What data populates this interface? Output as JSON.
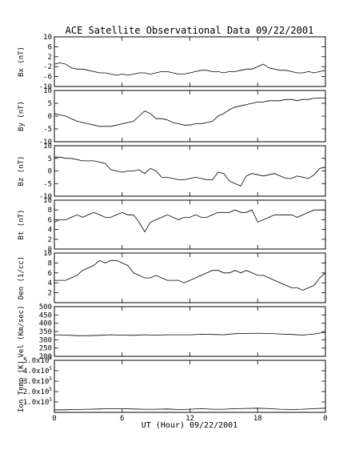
{
  "chart_data": {
    "type": "line",
    "title": "ACE Satellite Observational Data   09/22/2001",
    "xlabel": "UT (Hour)  09/22/2001",
    "x_ticks": [
      "0",
      "6",
      "12",
      "18",
      "0"
    ],
    "xlim": [
      0,
      24
    ],
    "grid": false,
    "panels": [
      {
        "id": "bx",
        "ylabel": "Bx (nT)",
        "ylim": [
          -10,
          10
        ],
        "yticks": [
          -10,
          -6,
          -2,
          2,
          6,
          10
        ],
        "ytick_labels": [
          "-10",
          "-6",
          "-2",
          "2",
          "6",
          "10"
        ],
        "x": [
          0,
          0.5,
          1,
          1.5,
          2,
          2.5,
          3,
          3.5,
          4,
          4.5,
          5,
          5.5,
          6,
          6.5,
          7,
          7.5,
          8,
          8.5,
          9,
          9.5,
          10,
          10.5,
          11,
          11.5,
          12,
          12.5,
          13,
          13.5,
          14,
          14.5,
          15,
          15.5,
          16,
          16.5,
          17,
          17.5,
          18,
          18.5,
          19,
          19.5,
          20,
          20.5,
          21,
          21.5,
          22,
          22.5,
          23,
          23.5,
          24
        ],
        "values": [
          -1,
          -0.5,
          -1,
          -2.5,
          -3,
          -3,
          -3.5,
          -4,
          -4.5,
          -4.5,
          -5,
          -5.5,
          -5,
          -5.5,
          -5,
          -4.5,
          -4.5,
          -5,
          -4.5,
          -4,
          -4,
          -4.5,
          -5,
          -5,
          -4.5,
          -4,
          -3.5,
          -3.5,
          -4,
          -4,
          -4.5,
          -4,
          -4,
          -3.5,
          -3,
          -3,
          -2,
          -1,
          -2.5,
          -3,
          -3.5,
          -3.5,
          -4,
          -4.5,
          -4.5,
          -4,
          -4.5,
          -4,
          -3.5
        ]
      },
      {
        "id": "by",
        "ylabel": "By (nT)",
        "ylim": [
          -10,
          10
        ],
        "yticks": [
          -10,
          -5,
          0,
          5,
          10
        ],
        "ytick_labels": [
          "-10",
          "-5",
          "0",
          "5",
          "10"
        ],
        "x": [
          0,
          0.5,
          1,
          1.5,
          2,
          2.5,
          3,
          3.5,
          4,
          4.5,
          5,
          5.5,
          6,
          6.5,
          7,
          7.5,
          8,
          8.5,
          9,
          9.5,
          10,
          10.5,
          11,
          11.5,
          12,
          12.5,
          13,
          13.5,
          14,
          14.5,
          15,
          15.5,
          16,
          16.5,
          17,
          17.5,
          18,
          18.5,
          19,
          19.5,
          20,
          20.5,
          21,
          21.5,
          22,
          22.5,
          23,
          23.5,
          24
        ],
        "values": [
          1,
          0.5,
          0,
          -1,
          -2,
          -2.5,
          -3,
          -3.5,
          -4,
          -4,
          -4,
          -3.5,
          -3,
          -2.5,
          -2,
          0,
          2,
          1,
          -1,
          -1,
          -1.5,
          -2.5,
          -3,
          -3.5,
          -3.5,
          -3,
          -3,
          -2.5,
          -2,
          0,
          1,
          2.5,
          3.5,
          4,
          4.5,
          5,
          5.5,
          5.5,
          6,
          6,
          6,
          6.5,
          6.5,
          6,
          6.5,
          6.5,
          7,
          7,
          7
        ]
      },
      {
        "id": "bz",
        "ylabel": "Bz (nT)",
        "ylim": [
          -10,
          10
        ],
        "yticks": [
          -10,
          -5,
          0,
          5,
          10
        ],
        "ytick_labels": [
          "-10",
          "-5",
          "0",
          "5",
          "10"
        ],
        "x": [
          0,
          0.5,
          1,
          1.5,
          2,
          2.5,
          3,
          3.5,
          4,
          4.5,
          5,
          5.5,
          6,
          6.5,
          7,
          7.5,
          8,
          8.5,
          9,
          9.5,
          10,
          10.5,
          11,
          11.5,
          12,
          12.5,
          13,
          13.5,
          14,
          14.5,
          15,
          15.5,
          16,
          16.5,
          17,
          17.5,
          18,
          18.5,
          19,
          19.5,
          20,
          20.5,
          21,
          21.5,
          22,
          22.5,
          23,
          23.5,
          24
        ],
        "values": [
          5.5,
          5.5,
          5,
          5,
          4.5,
          4,
          4,
          4,
          3.5,
          3,
          0.5,
          0,
          -0.5,
          0,
          0,
          0.5,
          -1,
          1,
          0,
          -2.5,
          -2.5,
          -3,
          -3.5,
          -3.5,
          -3,
          -2.5,
          -3,
          -3.5,
          -3.5,
          -0.5,
          -1,
          -4,
          -5,
          -6,
          -2,
          -1,
          -1.5,
          -2,
          -1.5,
          -1,
          -2,
          -3,
          -3,
          -2,
          -2.5,
          -3,
          -1.5,
          1,
          1.5
        ]
      },
      {
        "id": "bt",
        "ylabel": "Bt (nT)",
        "ylim": [
          0,
          10
        ],
        "yticks": [
          0,
          2,
          4,
          6,
          8,
          10
        ],
        "ytick_labels": [
          "0",
          "2",
          "4",
          "6",
          "8",
          "10"
        ],
        "x": [
          0,
          0.5,
          1,
          1.5,
          2,
          2.5,
          3,
          3.5,
          4,
          4.5,
          5,
          5.5,
          6,
          6.5,
          7,
          7.5,
          8,
          8.5,
          9,
          9.5,
          10,
          10.5,
          11,
          11.5,
          12,
          12.5,
          13,
          13.5,
          14,
          14.5,
          15,
          15.5,
          16,
          16.5,
          17,
          17.5,
          18,
          18.5,
          19,
          19.5,
          20,
          20.5,
          21,
          21.5,
          22,
          22.5,
          23,
          23.5,
          24
        ],
        "values": [
          5.5,
          6,
          6,
          6.5,
          7,
          6.5,
          7,
          7.5,
          7,
          6.5,
          6.5,
          7,
          7.5,
          7,
          7,
          5.5,
          3.5,
          5.5,
          6,
          6.5,
          7,
          6.5,
          6,
          6.5,
          6.5,
          7,
          6.5,
          6.5,
          7,
          7.5,
          7.5,
          7.5,
          8,
          7.5,
          7.5,
          8,
          5.5,
          6,
          6.5,
          7,
          7,
          7,
          7,
          6.5,
          7,
          7.5,
          8,
          8,
          8
        ]
      },
      {
        "id": "den",
        "ylabel": "Den (1/cc)",
        "ylim": [
          0,
          10
        ],
        "yticks": [
          2,
          4,
          6,
          8,
          10
        ],
        "ytick_labels": [
          "2",
          "4",
          "6",
          "8",
          "10"
        ],
        "x": [
          0,
          0.5,
          1,
          1.5,
          2,
          2.5,
          3,
          3.5,
          4,
          4.5,
          5,
          5.5,
          6,
          6.5,
          7,
          7.5,
          8,
          8.5,
          9,
          9.5,
          10,
          10.5,
          11,
          11.5,
          12,
          12.5,
          13,
          13.5,
          14,
          14.5,
          15,
          15.5,
          16,
          16.5,
          17,
          17.5,
          18,
          18.5,
          19,
          19.5,
          20,
          20.5,
          21,
          21.5,
          22,
          22.5,
          23,
          23.5,
          24
        ],
        "values": [
          4.5,
          4.5,
          4.5,
          5,
          5.5,
          6.5,
          7,
          7.5,
          8.5,
          8,
          8.5,
          8.5,
          8,
          7.5,
          6,
          5.5,
          5,
          5,
          5.5,
          5,
          4.5,
          4.5,
          4.5,
          4,
          4.5,
          5,
          5.5,
          6,
          6.5,
          6.5,
          6,
          6,
          6.5,
          6,
          6.5,
          6,
          5.5,
          5.5,
          5,
          4.5,
          4,
          3.5,
          3,
          3,
          2.5,
          3,
          3.5,
          5,
          6
        ]
      },
      {
        "id": "vel",
        "ylabel": "Vel (Km/sec)",
        "ylim": [
          200,
          500
        ],
        "yticks": [
          200,
          250,
          300,
          350,
          400,
          450,
          500
        ],
        "ytick_labels": [
          "200",
          "250",
          "300",
          "350",
          "400",
          "450",
          "500"
        ],
        "x": [
          0,
          1,
          2,
          3,
          4,
          5,
          6,
          7,
          8,
          9,
          10,
          11,
          12,
          13,
          14,
          15,
          16,
          17,
          18,
          19,
          20,
          21,
          22,
          23,
          24
        ],
        "values": [
          330,
          328,
          325,
          325,
          327,
          330,
          328,
          327,
          330,
          328,
          330,
          330,
          330,
          333,
          332,
          330,
          337,
          338,
          340,
          338,
          335,
          332,
          328,
          335,
          345
        ]
      },
      {
        "id": "temp",
        "ylabel": "Ion Temp (K)",
        "ylim": [
          0,
          500000
        ],
        "yticks": [
          100000,
          200000,
          300000,
          400000,
          500000
        ],
        "ytick_labels": [
          "1.0x10",
          "2.0x10",
          "3.0x10",
          "4.0x10",
          "5.0x10"
        ],
        "ytick_exponent": "5",
        "x": [
          0,
          1,
          2,
          3,
          4,
          5,
          6,
          7,
          8,
          9,
          10,
          11,
          12,
          13,
          14,
          15,
          16,
          17,
          18,
          19,
          20,
          21,
          22,
          23,
          24
        ],
        "values": [
          25000,
          25000,
          28000,
          30000,
          32000,
          35000,
          35000,
          32000,
          30000,
          30000,
          32000,
          28000,
          30000,
          35000,
          30000,
          30000,
          35000,
          38000,
          40000,
          35000,
          30000,
          28000,
          30000,
          35000,
          40000
        ]
      }
    ]
  }
}
